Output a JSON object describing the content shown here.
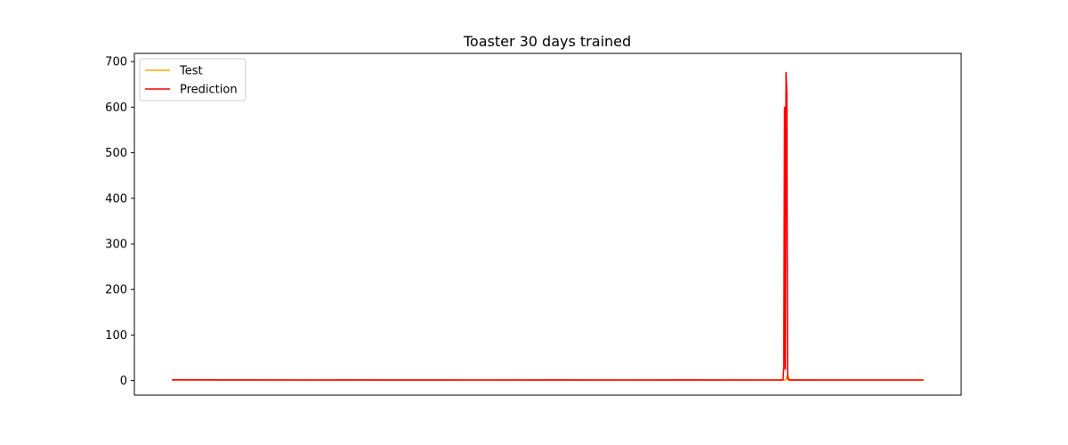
{
  "chart_data": {
    "type": "line",
    "title": "Toaster 30 days trained",
    "xlabel": "",
    "ylabel": "",
    "x_ticks_visible": false,
    "ylim": [
      -32,
      718
    ],
    "yticks": [
      0,
      100,
      200,
      300,
      400,
      500,
      600,
      700
    ],
    "grid": false,
    "legend_position": "upper-left",
    "x_range": [
      0,
      1000
    ],
    "xlim": [
      -50,
      1050
    ],
    "series": [
      {
        "name": "Test",
        "color": "#ffa500",
        "points": [
          [
            0,
            1.5
          ],
          [
            300,
            1.2
          ],
          [
            600,
            1.3
          ],
          [
            814,
            1.2
          ],
          [
            816,
            1.4
          ],
          [
            817,
            3
          ],
          [
            818,
            8
          ],
          [
            819,
            12
          ],
          [
            820,
            8
          ],
          [
            821,
            4
          ],
          [
            822,
            2
          ],
          [
            823,
            1.4
          ],
          [
            1000,
            1.2
          ]
        ]
      },
      {
        "name": "Prediction",
        "color": "#ff0000",
        "points": [
          [
            0,
            1.5
          ],
          [
            100,
            1.3
          ],
          [
            200,
            1.2
          ],
          [
            300,
            1.4
          ],
          [
            400,
            1.2
          ],
          [
            500,
            1.3
          ],
          [
            600,
            1.2
          ],
          [
            700,
            1.3
          ],
          [
            800,
            1.2
          ],
          [
            812,
            1.3
          ],
          [
            813,
            1.3
          ],
          [
            814,
            30
          ],
          [
            815,
            600
          ],
          [
            816,
            25
          ],
          [
            817,
            676
          ],
          [
            818,
            628
          ],
          [
            819,
            6
          ],
          [
            820,
            1.5
          ],
          [
            821,
            1.3
          ],
          [
            900,
            1.2
          ],
          [
            1000,
            1.2
          ]
        ]
      }
    ]
  }
}
